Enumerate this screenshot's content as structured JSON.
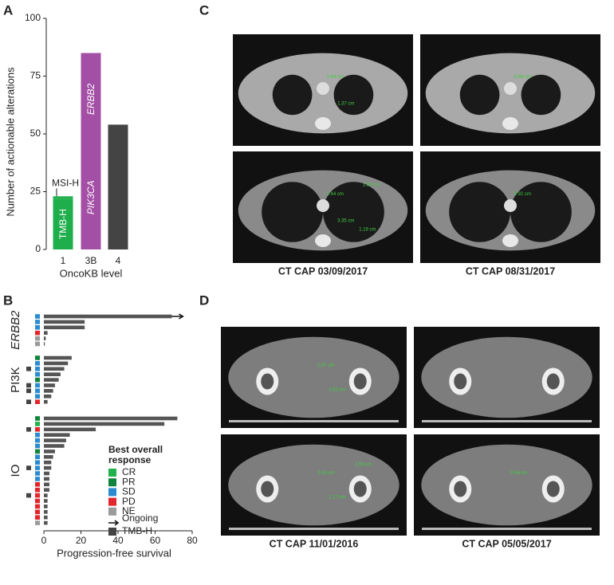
{
  "panels": {
    "a": "A",
    "b": "B",
    "c": "C",
    "d": "D"
  },
  "chart_data": [
    {
      "type": "stacked_bar",
      "ylabel": "Number of actionable alterations",
      "xlabel": "OncoKB level",
      "categories": [
        "1",
        "3B",
        "4"
      ],
      "series": [
        {
          "name": "TMB-H",
          "color": "#1fae4c",
          "values": [
            22,
            null,
            null
          ]
        },
        {
          "name": "MSI-H",
          "color": "#1fae4c",
          "values": [
            1,
            null,
            null
          ]
        },
        {
          "name": "PIK3CA",
          "italic": true,
          "color": "#a44fa6",
          "values": [
            null,
            45,
            null
          ]
        },
        {
          "name": "ERBB2",
          "italic": true,
          "color": "#a44fa6",
          "values": [
            null,
            40,
            null
          ]
        },
        {
          "color": "#444444",
          "values": [
            null,
            null,
            54
          ]
        }
      ],
      "ylim": [
        0,
        100
      ],
      "yticks": [
        0,
        25,
        50,
        75,
        100
      ]
    },
    {
      "type": "swimmer",
      "xlabel": "Progression-free survival",
      "xlim": [
        0,
        80
      ],
      "xticks": [
        0,
        20,
        40,
        60,
        80
      ],
      "bar_color": "#555555",
      "groups": [
        {
          "name": "ERBB2",
          "italic": true,
          "rows": [
            {
              "value": 69,
              "response": "SD",
              "ongoing": true
            },
            {
              "value": 22,
              "response": "SD"
            },
            {
              "value": 22,
              "response": "SD"
            },
            {
              "value": 2,
              "response": "PD"
            },
            {
              "value": 1,
              "response": "NE"
            },
            {
              "value": 0.5,
              "response": "NE"
            }
          ]
        },
        {
          "name": "PI3K",
          "rows": [
            {
              "value": 15,
              "response": "PR"
            },
            {
              "value": 13,
              "response": "SD"
            },
            {
              "value": 11,
              "response": "SD",
              "tmb_h": true
            },
            {
              "value": 9,
              "response": "SD"
            },
            {
              "value": 8,
              "response": "PR"
            },
            {
              "value": 6,
              "response": "SD",
              "tmb_h": true
            },
            {
              "value": 5,
              "response": "SD",
              "tmb_h": true
            },
            {
              "value": 4,
              "response": "SD"
            },
            {
              "value": 2,
              "response": "PD",
              "tmb_h": true
            }
          ]
        },
        {
          "name": "IO",
          "rows": [
            {
              "value": 72,
              "response": "PR"
            },
            {
              "value": 65,
              "response": "CR"
            },
            {
              "value": 28,
              "response": "PD",
              "tmb_h": true
            },
            {
              "value": 14,
              "response": "SD"
            },
            {
              "value": 12,
              "response": "SD"
            },
            {
              "value": 11,
              "response": "SD"
            },
            {
              "value": 6,
              "response": "PR"
            },
            {
              "value": 5,
              "response": "SD"
            },
            {
              "value": 4,
              "response": "SD"
            },
            {
              "value": 4,
              "response": "SD",
              "tmb_h": true
            },
            {
              "value": 3,
              "response": "SD"
            },
            {
              "value": 3,
              "response": "SD"
            },
            {
              "value": 3,
              "response": "PD"
            },
            {
              "value": 3,
              "response": "PD"
            },
            {
              "value": 2,
              "response": "PD",
              "tmb_h": true
            },
            {
              "value": 2,
              "response": "PD"
            },
            {
              "value": 2,
              "response": "PD"
            },
            {
              "value": 2,
              "response": "PD"
            },
            {
              "value": 2,
              "response": "PD"
            },
            {
              "value": 2,
              "response": "NE"
            }
          ]
        }
      ],
      "legend": {
        "title": "Best overall response",
        "responses": [
          {
            "name": "CR",
            "color": "#22b24c"
          },
          {
            "name": "PR",
            "color": "#10843c"
          },
          {
            "name": "SD",
            "color": "#2b8bd0"
          },
          {
            "name": "PD",
            "color": "#e2262b"
          },
          {
            "name": "NE",
            "color": "#9b9b9b"
          }
        ],
        "ongoing": "Ongoing",
        "tmb_h": {
          "name": "TMB-H",
          "color": "#444444"
        }
      }
    }
  ],
  "ct_panels": [
    {
      "captions": [
        "CT CAP 03/09/2017",
        "CT CAP 08/31/2017"
      ],
      "images": [
        {
          "kind": "chest-top",
          "measurements": [
            "1.44 cm",
            "1.37 cm"
          ]
        },
        {
          "kind": "chest-top",
          "measurements": [
            "0.98 cm"
          ]
        },
        {
          "kind": "chest",
          "measurements": [
            "2.44 cm",
            "3.35 cm",
            "1.32 cm",
            "1.19 cm"
          ]
        },
        {
          "kind": "chest",
          "measurements": [
            "0.92 cm"
          ]
        }
      ]
    },
    {
      "captions": [
        "CT CAP 11/01/2016",
        "CT CAP 05/05/2017"
      ],
      "images": [
        {
          "kind": "pelvis",
          "measurements": [
            "1.97 cm",
            "2.52 cm"
          ]
        },
        {
          "kind": "pelvis",
          "measurements": []
        },
        {
          "kind": "hip",
          "measurements": [
            "2.63 cm",
            "1.17 cm",
            "2.55 cm"
          ]
        },
        {
          "kind": "hip",
          "measurements": [
            "0.56 cm"
          ]
        }
      ]
    }
  ]
}
